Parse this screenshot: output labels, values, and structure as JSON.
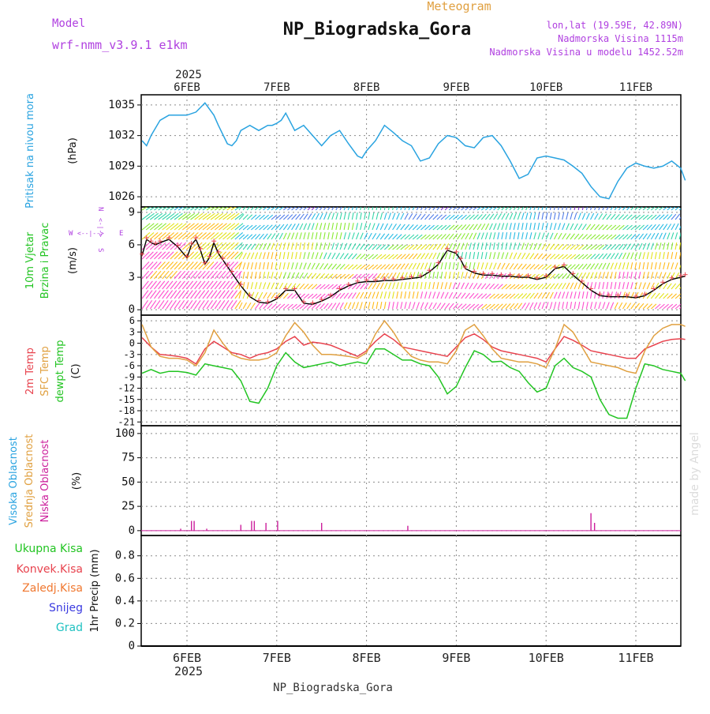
{
  "header": {
    "model_label": "Model",
    "model_name": "wrf-nmm_v3.9.1 e1km",
    "chart_type": "Meteogram",
    "station": "NP_Biogradska_Gora",
    "lonlat": "lon,lat (19.59E, 42.89N)",
    "altitude": "Nadmorska Visina 1115m",
    "model_altitude": "Nadmorska Visina u modelu 1452.52m",
    "footer_station": "NP_Biogradska_Gora",
    "watermark": "made by Angel"
  },
  "time_axis": {
    "year_top": "2025",
    "year_bottom": "2025",
    "ticks": [
      "6FEB",
      "7FEB",
      "8FEB",
      "9FEB",
      "10FEB",
      "11FEB"
    ]
  },
  "colors": {
    "pressure": "#29a3e0",
    "temp2m": "#e8434e",
    "sfc_temp": "#e0a040",
    "dewpoint": "#22c422",
    "wind_speed": "#000000",
    "wind_gust_marks": "#e8434e",
    "high_cloud": "#29a3e0",
    "mid_cloud": "#e0a040",
    "low_cloud": "#cc1f9c",
    "grid": "#8a8a8a",
    "panel_label_green": "#22c422",
    "panel_label_red": "#e8434e",
    "panel_label_orange": "#f07830",
    "panel_label_blue": "#3a3ae0",
    "panel_label_cyan": "#1fc1c1",
    "panel_label_purple": "#b040e0"
  },
  "panels": {
    "pressure": {
      "label_main": "Pritisak na nivou mora",
      "unit": "(hPa)",
      "yticks": [
        "1035",
        "1032",
        "1029",
        "1026"
      ]
    },
    "wind": {
      "label_line1": "10m Vjetar",
      "label_line2": "Brzina i Pravac",
      "unit": "(m/s)",
      "yticks": [
        "9",
        "6",
        "3",
        "0"
      ],
      "compass_n": "N",
      "compass_w": "W",
      "compass_e": "E",
      "compass_s": "S",
      "compass_arrow_ns": "<-|->",
      "compass_arrow_we": "<--|-->"
    },
    "temperature": {
      "label_2m": "2m Temp",
      "label_sfc": "SFC Temp",
      "label_dewpt": "dewpt Temp",
      "unit": "(C)",
      "yticks": [
        "6",
        "3",
        "0",
        "-3",
        "-6",
        "-9",
        "-12",
        "-15",
        "-18",
        "-21"
      ]
    },
    "clouds": {
      "label_high": "Visoka Oblacnost",
      "label_mid": "Srednja Oblacnost",
      "label_low": "Niska Oblacnost",
      "unit": "(%)",
      "yticks": [
        "100",
        "75",
        "50",
        "25",
        "0"
      ]
    },
    "precip": {
      "legend_total": "Ukupna Kisa",
      "legend_conv": "Konvek.Kisa",
      "legend_frozen": "Zaledj.Kisa",
      "legend_snow": "Snijeg",
      "legend_graupel": "Grad",
      "unit": "1hr Precip (mm)",
      "yticks": [
        "0.8",
        "0.6",
        "0.4",
        "0.2",
        "0"
      ]
    }
  },
  "chart_data": [
    {
      "type": "line",
      "panel": "pressure",
      "ylabel": "(hPa)",
      "ylim": [
        1025,
        1036
      ],
      "x_unit": "days since 5 Feb 2025 12:00",
      "series": [
        {
          "name": "Pritisak na nivou mora",
          "x": [
            0.0,
            0.05,
            0.1,
            0.2,
            0.3,
            0.4,
            0.5,
            0.6,
            0.7,
            0.8,
            0.85,
            0.95,
            1.0,
            1.05,
            1.1,
            1.2,
            1.3,
            1.4,
            1.45,
            1.5,
            1.55,
            1.6,
            1.7,
            1.8,
            1.9,
            2.0,
            2.1,
            2.2,
            2.3,
            2.4,
            2.45,
            2.5,
            2.6,
            2.7,
            2.8,
            2.9,
            3.0,
            3.1,
            3.2,
            3.3,
            3.4,
            3.5,
            3.6,
            3.7,
            3.8,
            3.9,
            4.0,
            4.1,
            4.2,
            4.3,
            4.4,
            4.5,
            4.6,
            4.7,
            4.8,
            4.9,
            5.0,
            5.1,
            5.2,
            5.3,
            5.4,
            5.5,
            5.6,
            5.7,
            5.8,
            5.9,
            6.0,
            6.05
          ],
          "y": [
            1031.5,
            1031.0,
            1032.0,
            1033.5,
            1034.0,
            1034.0,
            1034.0,
            1034.3,
            1035.2,
            1034.0,
            1033.0,
            1031.2,
            1031.0,
            1031.5,
            1032.5,
            1033.0,
            1032.5,
            1033.0,
            1033.0,
            1033.2,
            1033.5,
            1034.2,
            1032.5,
            1033.0,
            1032.0,
            1031.0,
            1032.0,
            1032.5,
            1031.2,
            1030.0,
            1029.8,
            1030.5,
            1031.5,
            1033.0,
            1032.3,
            1031.5,
            1031.0,
            1029.5,
            1029.8,
            1031.2,
            1032.0,
            1031.8,
            1031.0,
            1030.8,
            1031.8,
            1032.0,
            1031.0,
            1029.5,
            1027.8,
            1028.2,
            1029.8,
            1030.0,
            1029.8,
            1029.6,
            1029.0,
            1028.3,
            1027.0,
            1026.0,
            1025.8,
            1027.5,
            1028.8,
            1029.3,
            1029.0,
            1028.8,
            1029.0,
            1029.5,
            1028.8,
            1027.6
          ]
        }
      ]
    },
    {
      "type": "line",
      "panel": "wind",
      "ylabel": "(m/s)",
      "ylim": [
        -0.5,
        9.5
      ],
      "x_unit": "days since 5 Feb 2025 12:00",
      "series": [
        {
          "name": "10m wind speed",
          "x": [
            0.0,
            0.05,
            0.1,
            0.15,
            0.2,
            0.3,
            0.4,
            0.5,
            0.55,
            0.6,
            0.65,
            0.7,
            0.75,
            0.8,
            0.85,
            0.9,
            0.95,
            1.0,
            1.1,
            1.2,
            1.3,
            1.4,
            1.5,
            1.6,
            1.7,
            1.8,
            1.9,
            2.0,
            2.1,
            2.2,
            2.3,
            2.4,
            2.5,
            2.6,
            2.7,
            2.8,
            2.9,
            3.0,
            3.1,
            3.2,
            3.3,
            3.4,
            3.5,
            3.55,
            3.6,
            3.7,
            3.8,
            3.9,
            4.0,
            4.1,
            4.2,
            4.3,
            4.4,
            4.5,
            4.6,
            4.7,
            4.8,
            4.9,
            5.0,
            5.1,
            5.2,
            5.3,
            5.4,
            5.5,
            5.6,
            5.7,
            5.8,
            5.9,
            6.0,
            6.05
          ],
          "y": [
            5.0,
            6.5,
            6.2,
            6.0,
            6.2,
            6.5,
            5.8,
            4.8,
            6.0,
            6.5,
            5.5,
            4.2,
            4.8,
            6.2,
            5.2,
            4.6,
            4.0,
            3.4,
            2.2,
            1.2,
            0.7,
            0.6,
            1.0,
            1.8,
            1.8,
            0.6,
            0.5,
            0.8,
            1.2,
            1.8,
            2.2,
            2.5,
            2.6,
            2.6,
            2.7,
            2.7,
            2.8,
            2.9,
            3.0,
            3.5,
            4.2,
            5.5,
            5.2,
            4.6,
            3.8,
            3.4,
            3.2,
            3.2,
            3.1,
            3.1,
            3.0,
            3.0,
            2.8,
            3.0,
            3.8,
            4.0,
            3.2,
            2.5,
            1.8,
            1.3,
            1.2,
            1.2,
            1.2,
            1.1,
            1.3,
            1.8,
            2.4,
            2.8,
            3.0,
            3.1
          ]
        }
      ]
    },
    {
      "type": "line",
      "panel": "temperature",
      "ylabel": "(C)",
      "ylim": [
        -22,
        7.5
      ],
      "x_unit": "days since 5 Feb 2025 12:00",
      "series": [
        {
          "name": "2m Temp",
          "x": [
            0.0,
            0.1,
            0.2,
            0.3,
            0.4,
            0.5,
            0.6,
            0.7,
            0.8,
            0.9,
            1.0,
            1.1,
            1.2,
            1.3,
            1.4,
            1.5,
            1.6,
            1.7,
            1.8,
            1.9,
            2.0,
            2.1,
            2.2,
            2.3,
            2.4,
            2.5,
            2.6,
            2.7,
            2.8,
            2.9,
            3.0,
            3.1,
            3.2,
            3.3,
            3.4,
            3.5,
            3.6,
            3.7,
            3.8,
            3.9,
            4.0,
            4.1,
            4.2,
            4.3,
            4.4,
            4.5,
            4.6,
            4.7,
            4.8,
            4.9,
            5.0,
            5.1,
            5.2,
            5.3,
            5.4,
            5.5,
            5.6,
            5.7,
            5.8,
            5.9,
            6.0,
            6.05
          ],
          "y": [
            1.5,
            -1.0,
            -3.0,
            -3.2,
            -3.5,
            -4.0,
            -5.5,
            -1.5,
            0.5,
            -1.0,
            -2.5,
            -3.0,
            -4.0,
            -3.0,
            -2.5,
            -1.5,
            0.5,
            1.8,
            -0.5,
            0.3,
            0.0,
            -0.5,
            -1.5,
            -2.5,
            -3.5,
            -2.0,
            0.5,
            2.5,
            1.0,
            -1.0,
            -1.5,
            -2.0,
            -2.5,
            -3.0,
            -3.5,
            -1.0,
            1.5,
            2.5,
            1.0,
            -1.0,
            -2.0,
            -2.5,
            -3.0,
            -3.5,
            -4.0,
            -5.0,
            -1.5,
            1.8,
            0.8,
            -0.5,
            -2.0,
            -2.5,
            -3.0,
            -3.5,
            -4.0,
            -4.0,
            -1.5,
            -0.5,
            0.5,
            1.0,
            1.2,
            1.0
          ]
        },
        {
          "name": "SFC Temp",
          "x": [
            0.0,
            0.1,
            0.2,
            0.3,
            0.4,
            0.5,
            0.6,
            0.7,
            0.8,
            0.9,
            1.0,
            1.1,
            1.2,
            1.3,
            1.4,
            1.5,
            1.6,
            1.7,
            1.8,
            1.9,
            2.0,
            2.1,
            2.2,
            2.3,
            2.4,
            2.5,
            2.6,
            2.7,
            2.8,
            2.9,
            3.0,
            3.1,
            3.2,
            3.3,
            3.4,
            3.5,
            3.6,
            3.7,
            3.8,
            3.9,
            4.0,
            4.1,
            4.2,
            4.3,
            4.4,
            4.5,
            4.6,
            4.7,
            4.8,
            4.9,
            5.0,
            5.1,
            5.2,
            5.3,
            5.4,
            5.5,
            5.6,
            5.7,
            5.8,
            5.9,
            6.0,
            6.05
          ],
          "y": [
            5.0,
            -1.0,
            -3.5,
            -4.0,
            -4.0,
            -4.5,
            -6.0,
            -2.5,
            3.5,
            0.0,
            -3.0,
            -4.0,
            -4.5,
            -4.5,
            -4.0,
            -2.5,
            2.0,
            5.5,
            3.0,
            -0.5,
            -3.0,
            -3.0,
            -3.2,
            -3.5,
            -4.0,
            -2.5,
            2.5,
            6.0,
            3.0,
            -1.0,
            -3.5,
            -4.5,
            -5.0,
            -5.0,
            -5.5,
            -2.0,
            3.5,
            5.0,
            2.0,
            -1.5,
            -4.0,
            -4.5,
            -5.0,
            -5.0,
            -5.5,
            -6.5,
            -1.5,
            5.0,
            3.0,
            -1.0,
            -5.0,
            -5.5,
            -6.0,
            -6.5,
            -7.5,
            -8.0,
            -2.0,
            2.0,
            4.0,
            5.0,
            5.0,
            4.5
          ]
        },
        {
          "name": "dewpt Temp",
          "x": [
            0.0,
            0.1,
            0.2,
            0.3,
            0.4,
            0.5,
            0.6,
            0.7,
            0.8,
            0.9,
            1.0,
            1.1,
            1.2,
            1.3,
            1.4,
            1.5,
            1.6,
            1.7,
            1.8,
            1.9,
            2.0,
            2.1,
            2.2,
            2.3,
            2.4,
            2.5,
            2.6,
            2.7,
            2.8,
            2.9,
            3.0,
            3.1,
            3.2,
            3.3,
            3.4,
            3.5,
            3.6,
            3.7,
            3.8,
            3.9,
            4.0,
            4.1,
            4.2,
            4.3,
            4.4,
            4.5,
            4.6,
            4.7,
            4.8,
            4.9,
            5.0,
            5.1,
            5.2,
            5.3,
            5.4,
            5.5,
            5.6,
            5.7,
            5.8,
            5.9,
            6.0,
            6.05
          ],
          "y": [
            -8.0,
            -7.0,
            -8.0,
            -7.5,
            -7.5,
            -7.8,
            -8.5,
            -5.5,
            -6.0,
            -6.5,
            -7.0,
            -10.0,
            -15.5,
            -16.0,
            -12.0,
            -6.0,
            -2.5,
            -5.0,
            -6.5,
            -6.0,
            -5.5,
            -5.0,
            -6.0,
            -5.5,
            -5.0,
            -5.5,
            -1.5,
            -1.5,
            -3.0,
            -4.5,
            -4.5,
            -5.5,
            -6.0,
            -9.0,
            -13.5,
            -11.5,
            -6.5,
            -2.0,
            -3.0,
            -5.0,
            -4.8,
            -6.5,
            -7.5,
            -10.5,
            -13.0,
            -12.0,
            -6.0,
            -4.0,
            -6.5,
            -7.5,
            -9.0,
            -15.0,
            -19.0,
            -20.0,
            -20.0,
            -12.0,
            -5.5,
            -6.0,
            -7.0,
            -7.5,
            -8.0,
            -10.0
          ]
        }
      ]
    },
    {
      "type": "bar",
      "panel": "clouds",
      "ylabel": "(%)",
      "ylim": [
        0,
        100
      ],
      "x_unit": "days since 5 Feb 2025 12:00",
      "series": [
        {
          "name": "Niska Oblacnost",
          "x": [
            0.43,
            0.55,
            0.58,
            0.72,
            1.1,
            1.22,
            1.25,
            1.38,
            1.51,
            2.0,
            2.96,
            5.0,
            5.04
          ],
          "y": [
            2,
            10,
            10,
            2,
            6,
            10,
            10,
            8,
            10,
            8,
            5,
            18,
            8
          ]
        }
      ]
    },
    {
      "type": "bar",
      "panel": "precip",
      "ylabel": "1hr Precip (mm)",
      "ylim": [
        0,
        1.0
      ],
      "x_unit": "days since 5 Feb 2025 12:00",
      "series": [
        {
          "name": "Ukupna Kisa",
          "x": [],
          "y": []
        }
      ]
    }
  ]
}
